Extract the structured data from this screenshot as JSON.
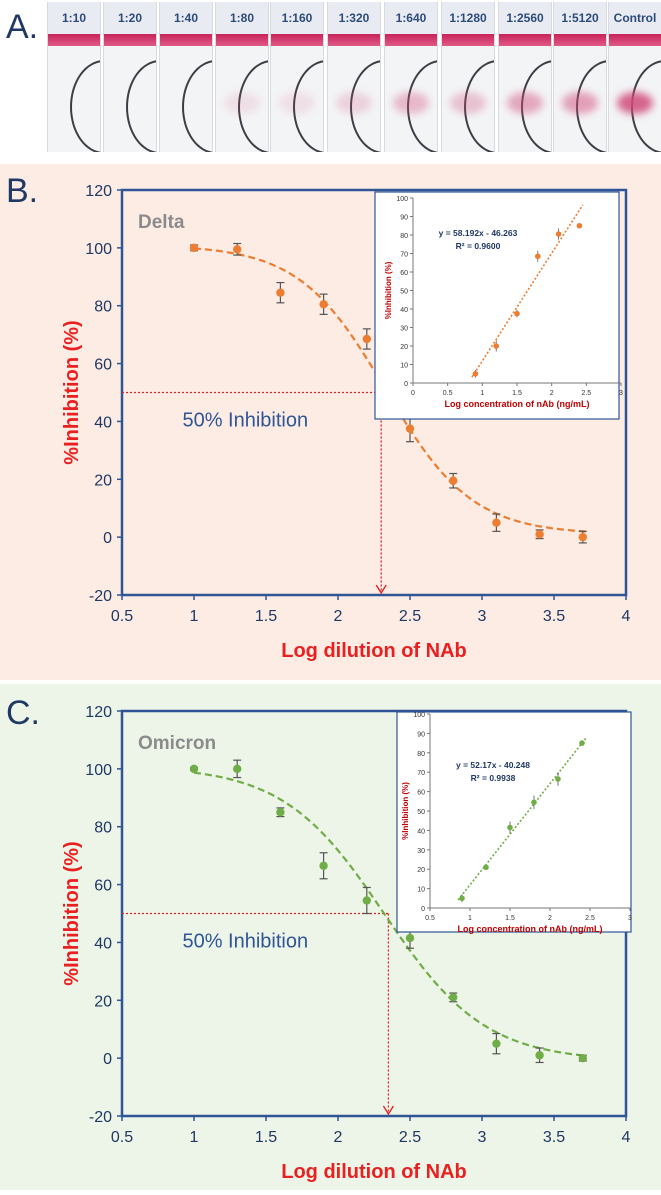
{
  "panelA": {
    "label": "A.",
    "strips": [
      {
        "label": "1:10",
        "spot": 0
      },
      {
        "label": "1:20",
        "spot": 0
      },
      {
        "label": "1:40",
        "spot": 0
      },
      {
        "label": "1:80",
        "spot": 0.12
      },
      {
        "label": "1:160",
        "spot": 0.12
      },
      {
        "label": "1:320",
        "spot": 0.2
      },
      {
        "label": "1:640",
        "spot": 0.35
      },
      {
        "label": "1:1280",
        "spot": 0.3
      },
      {
        "label": "1:2560",
        "spot": 0.45
      },
      {
        "label": "1:5120",
        "spot": 0.5
      },
      {
        "label": "Control",
        "spot": 0.85
      }
    ]
  },
  "chart_data": [
    {
      "panel_label": "B.",
      "type": "scatter",
      "title": "Delta",
      "xlabel": "Log dilution of NAb",
      "ylabel": "%Inhibition (%)",
      "xlim": [
        0.5,
        4
      ],
      "ylim": [
        -20,
        120
      ],
      "xticks": [
        "0.5",
        "1",
        "1.5",
        "2",
        "2.5",
        "3",
        "3.5",
        "4"
      ],
      "yticks": [
        "-20",
        "0",
        "20",
        "40",
        "60",
        "80",
        "100",
        "120"
      ],
      "color": "#ed7d31",
      "x": [
        1.0,
        1.3,
        1.6,
        1.9,
        2.2,
        2.5,
        2.8,
        3.1,
        3.4,
        3.7
      ],
      "y": [
        100,
        99.5,
        84.5,
        80.5,
        68.5,
        37.5,
        19.5,
        5,
        1,
        0
      ],
      "err": [
        1,
        2,
        3.5,
        3.5,
        3.5,
        4.5,
        2.5,
        3,
        1.5,
        2
      ],
      "fit_curve": {
        "top": 101,
        "bottom": 1,
        "x50": 2.33,
        "slope": 0.3
      },
      "annotation": "50% Inhibition",
      "ic50_x": 2.3,
      "inset": {
        "type": "scatter",
        "xlabel": "Log concentration of nAb (ng/mL)",
        "ylabel": "%Inhibition (%)",
        "xlim": [
          0,
          3
        ],
        "ylim": [
          0,
          100
        ],
        "xticks": [
          "0",
          "0.5",
          "1",
          "1.5",
          "2",
          "2.5",
          "3"
        ],
        "yticks": [
          "0",
          "10",
          "20",
          "30",
          "40",
          "50",
          "60",
          "70",
          "80",
          "90",
          "100"
        ],
        "x": [
          0.9,
          1.2,
          1.5,
          1.8,
          2.1,
          2.4
        ],
        "y": [
          5,
          20,
          37.5,
          68.5,
          80.5,
          85
        ],
        "err": [
          2,
          3,
          2,
          3,
          3,
          1
        ],
        "equation": "y = 58.192x - 46.263",
        "r2": "R² = 0.9600",
        "fit": {
          "slope": 58.192,
          "intercept": -46.263
        }
      }
    },
    {
      "panel_label": "C.",
      "type": "scatter",
      "title": "Omicron",
      "xlabel": "Log dilution of NAb",
      "ylabel": "%Inhibition (%)",
      "xlim": [
        0.5,
        4
      ],
      "ylim": [
        -20,
        120
      ],
      "xticks": [
        "0.5",
        "1",
        "1.5",
        "2",
        "2.5",
        "3",
        "3.5",
        "4"
      ],
      "yticks": [
        "-20",
        "0",
        "20",
        "40",
        "60",
        "80",
        "100",
        "120"
      ],
      "color": "#70ad47",
      "x": [
        1.0,
        1.3,
        1.6,
        1.9,
        2.2,
        2.5,
        2.8,
        3.1,
        3.4,
        3.7
      ],
      "y": [
        100,
        100,
        85,
        66.5,
        54.5,
        41.5,
        21,
        5,
        1,
        0
      ],
      "err": [
        0.5,
        3,
        1.5,
        4.5,
        4.5,
        3.5,
        1.5,
        3.5,
        2.5,
        1
      ],
      "fit_curve": {
        "top": 101,
        "bottom": -1,
        "x50": 2.32,
        "slope": 0.35
      },
      "annotation": "50% Inhibition",
      "ic50_x": 2.35,
      "inset": {
        "type": "scatter",
        "xlabel": "Log concentration of nAb (ng/mL)",
        "ylabel": "%Inhibition (%)",
        "xlim": [
          0.5,
          3
        ],
        "ylim": [
          0,
          100
        ],
        "xticks": [
          "0.5",
          "1",
          "1.5",
          "2",
          "2.5",
          "3"
        ],
        "yticks": [
          "0",
          "10",
          "20",
          "30",
          "40",
          "50",
          "60",
          "70",
          "80",
          "90",
          "100"
        ],
        "x": [
          0.9,
          1.2,
          1.5,
          1.8,
          2.1,
          2.4
        ],
        "y": [
          5,
          21,
          41.5,
          54.5,
          66.5,
          85
        ],
        "err": [
          2,
          1,
          3,
          3.5,
          3.5,
          0.5
        ],
        "equation": "y = 52.17x - 40.248",
        "r2": "R² = 0.9938",
        "fit": {
          "slope": 52.17,
          "intercept": -40.248
        }
      }
    }
  ]
}
